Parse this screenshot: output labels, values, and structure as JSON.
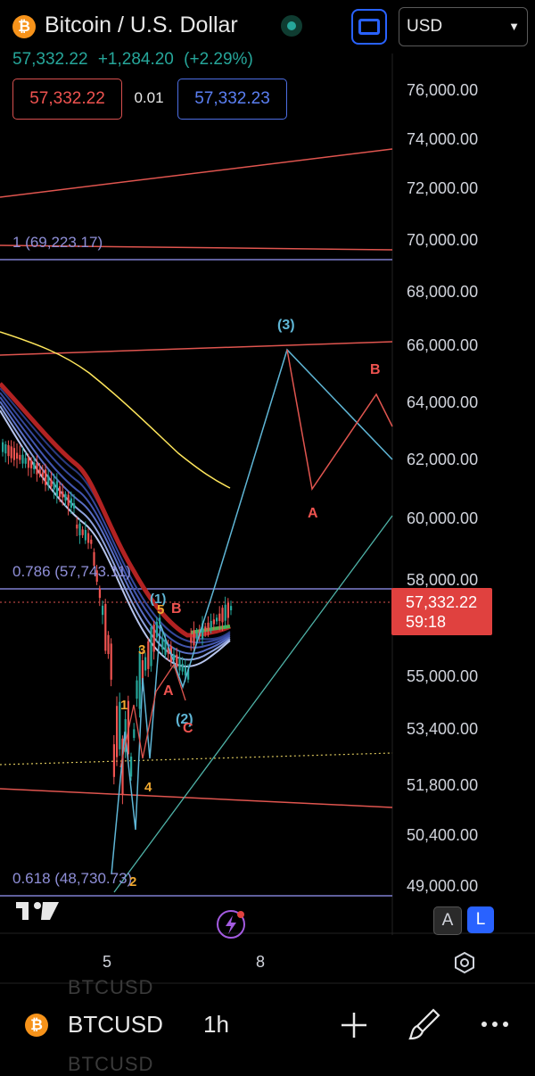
{
  "header": {
    "title": "Bitcoin / U.S. Dollar",
    "badge_glyph": "₿",
    "last_price": "57,332.22",
    "change": "+1,284.20",
    "change_pct": "(+2.29%)",
    "bid": "57,332.22",
    "spread": "0.01",
    "ask": "57,332.23",
    "currency": "USD"
  },
  "price_axis": [
    "76,000.00",
    "74,000.00",
    "72,000.00",
    "70,000.00",
    "68,000.00",
    "66,000.00",
    "64,000.00",
    "62,000.00",
    "60,000.00",
    "58,000.00",
    "55,000.00",
    "53,400.00",
    "51,800.00",
    "50,400.00",
    "49,000.00"
  ],
  "price_tag": {
    "price": "57,332.22",
    "countdown": "59:18"
  },
  "time_axis": [
    "5",
    "8"
  ],
  "fib_levels": [
    {
      "label": "1 (69,223.17)"
    },
    {
      "label": "0.786 (57,743.11)"
    },
    {
      "label": "0.618 (48,730.73)"
    }
  ],
  "wave_labels": [
    "(1)",
    "5",
    "B",
    "3",
    "A",
    "1",
    "(2)",
    "C",
    "4",
    "2",
    "(3)",
    "A",
    "B"
  ],
  "buttons": {
    "a_label": "A",
    "l_label": "L"
  },
  "bottom": {
    "symbol": "BTCUSD",
    "timeframe": "1h",
    "ghost_top": "BTCUSD",
    "ghost_bottom": "BTCUSD"
  },
  "colors": {
    "up": "#26a69a",
    "down": "#ef5350",
    "fib": "#7f7fd0",
    "accent": "#2962ff",
    "projection_cyan": "#5fb6d6",
    "projection_red": "#e0554f",
    "ma_yellow": "#ffe75c",
    "ribbon_red": "#b22222"
  },
  "icons": [
    "bitcoin-icon",
    "fullscreen-icon",
    "chevron-down-icon",
    "tradingview-logo-icon",
    "lightning-icon",
    "settings-hex-icon",
    "plus-icon",
    "brush-icon",
    "more-icon"
  ]
}
